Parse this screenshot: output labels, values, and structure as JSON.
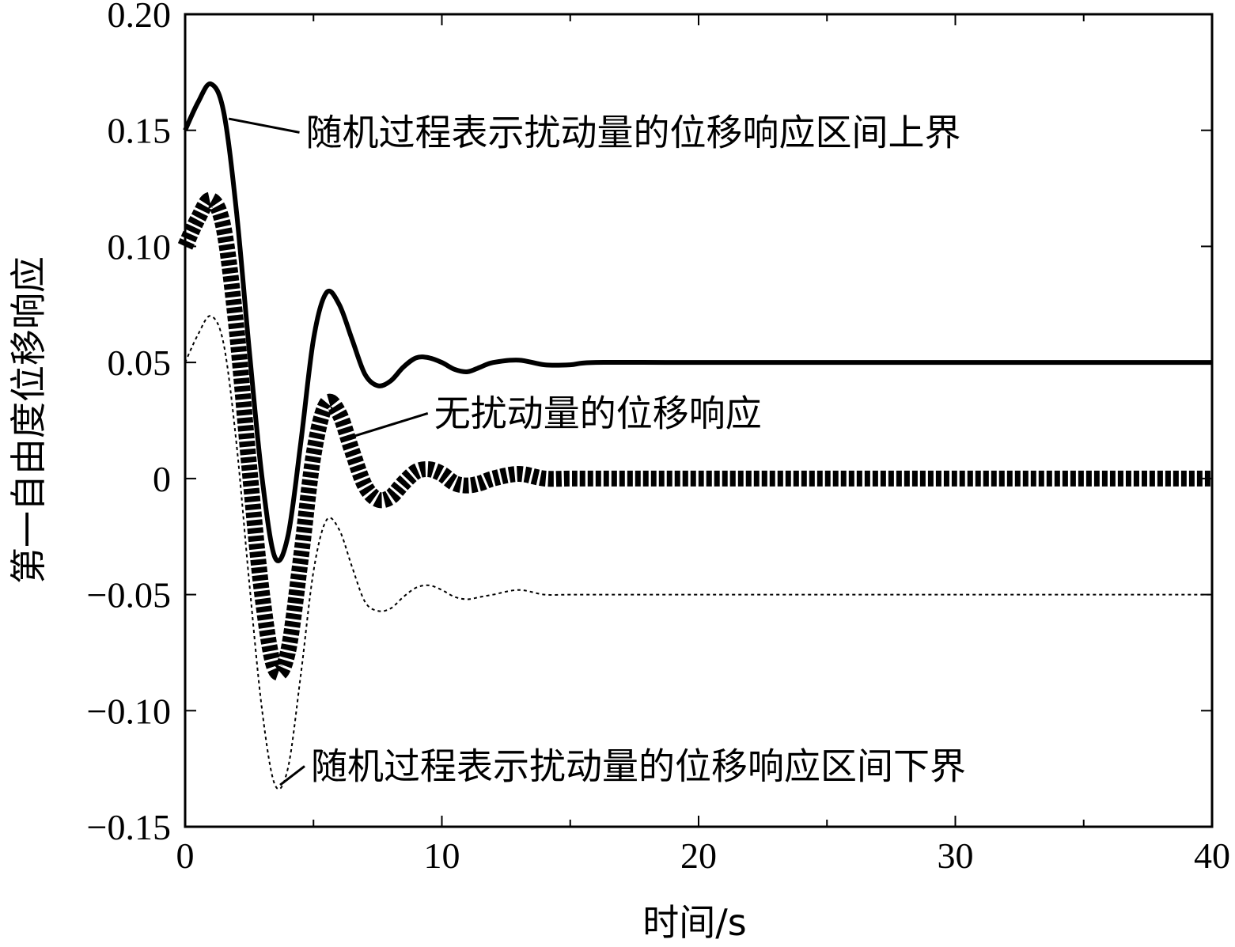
{
  "chart_data": {
    "type": "line",
    "xlabel": "时间/s",
    "ylabel": "第一自由度位移响应",
    "xlim": [
      0,
      40
    ],
    "ylim": [
      -0.15,
      0.2
    ],
    "x_ticks": [
      0,
      10,
      20,
      30,
      40
    ],
    "x_tick_labels": [
      "0",
      "10",
      "20",
      "30",
      "40"
    ],
    "x_minor_ticks": [
      5,
      15,
      25,
      35
    ],
    "y_ticks": [
      -0.15,
      -0.1,
      -0.05,
      0,
      0.05,
      0.1,
      0.15,
      0.2
    ],
    "y_tick_labels": [
      "−0.15",
      "−0.10",
      "−0.05",
      "0",
      "0.05",
      "0.10",
      "0.15",
      "0.20"
    ],
    "grid": false,
    "legend": "none",
    "series": [
      {
        "name": "随机过程表示扰动量的位移响应区间上界",
        "style": "solid",
        "color": "#000000",
        "x": [
          0,
          0.5,
          1.0,
          1.5,
          2.0,
          2.5,
          3.0,
          3.5,
          4.0,
          4.5,
          5.0,
          5.5,
          6.0,
          6.5,
          7.0,
          7.5,
          8.0,
          8.5,
          9.0,
          9.5,
          10.0,
          10.5,
          11.0,
          11.5,
          12.0,
          13.0,
          14.0,
          15.0,
          16.0,
          20.0,
          30.0,
          40.0
        ],
        "y": [
          0.15,
          0.162,
          0.17,
          0.158,
          0.115,
          0.055,
          0.0,
          -0.034,
          -0.025,
          0.015,
          0.06,
          0.08,
          0.075,
          0.06,
          0.045,
          0.04,
          0.042,
          0.048,
          0.052,
          0.052,
          0.05,
          0.047,
          0.046,
          0.048,
          0.05,
          0.051,
          0.049,
          0.049,
          0.05,
          0.05,
          0.05,
          0.05
        ]
      },
      {
        "name": "无扰动量的位移响应",
        "style": "bold",
        "color": "#000000",
        "x": [
          0,
          0.5,
          1.0,
          1.5,
          2.0,
          2.5,
          3.0,
          3.5,
          4.0,
          4.5,
          5.0,
          5.5,
          6.0,
          6.5,
          7.0,
          7.5,
          8.0,
          8.5,
          9.0,
          9.5,
          10.0,
          10.5,
          11.0,
          11.5,
          12.0,
          13.0,
          14.0,
          15.0,
          16.0,
          20.0,
          30.0,
          40.0
        ],
        "y": [
          0.1,
          0.112,
          0.12,
          0.108,
          0.065,
          0.005,
          -0.05,
          -0.082,
          -0.075,
          -0.035,
          0.01,
          0.032,
          0.028,
          0.012,
          -0.003,
          -0.009,
          -0.008,
          -0.002,
          0.003,
          0.004,
          0.002,
          -0.002,
          -0.003,
          -0.002,
          0.0,
          0.002,
          0.0,
          0.0,
          0.0,
          0.0,
          0.0,
          0.0
        ]
      },
      {
        "name": "随机过程表示扰动量的位移响应区间下界",
        "style": "dotted",
        "color": "#000000",
        "x": [
          0,
          0.5,
          1.0,
          1.5,
          2.0,
          2.5,
          3.0,
          3.5,
          4.0,
          4.5,
          5.0,
          5.5,
          6.0,
          6.5,
          7.0,
          7.5,
          8.0,
          8.5,
          9.0,
          9.5,
          10.0,
          10.5,
          11.0,
          11.5,
          12.0,
          13.0,
          14.0,
          15.0,
          16.0,
          20.0,
          30.0,
          40.0
        ],
        "y": [
          0.05,
          0.062,
          0.07,
          0.058,
          0.015,
          -0.045,
          -0.1,
          -0.132,
          -0.125,
          -0.085,
          -0.04,
          -0.018,
          -0.022,
          -0.038,
          -0.053,
          -0.057,
          -0.056,
          -0.051,
          -0.047,
          -0.046,
          -0.048,
          -0.051,
          -0.052,
          -0.051,
          -0.05,
          -0.048,
          -0.05,
          -0.05,
          -0.05,
          -0.05,
          -0.05,
          -0.05
        ]
      }
    ],
    "annotations": [
      {
        "text": "随机过程表示扰动量的位移响应区间上界",
        "series": 0,
        "point": [
          1.7,
          0.155
        ],
        "text_pos": [
          4.7,
          0.145
        ]
      },
      {
        "text": "无扰动量的位移响应",
        "series": 1,
        "point": [
          6.5,
          0.018
        ],
        "text_pos": [
          9.7,
          0.024
        ]
      },
      {
        "text": "随机过程表示扰动量的位移响应区间下界",
        "series": 2,
        "point": [
          3.7,
          -0.132
        ],
        "text_pos": [
          4.9,
          -0.128
        ]
      }
    ]
  }
}
